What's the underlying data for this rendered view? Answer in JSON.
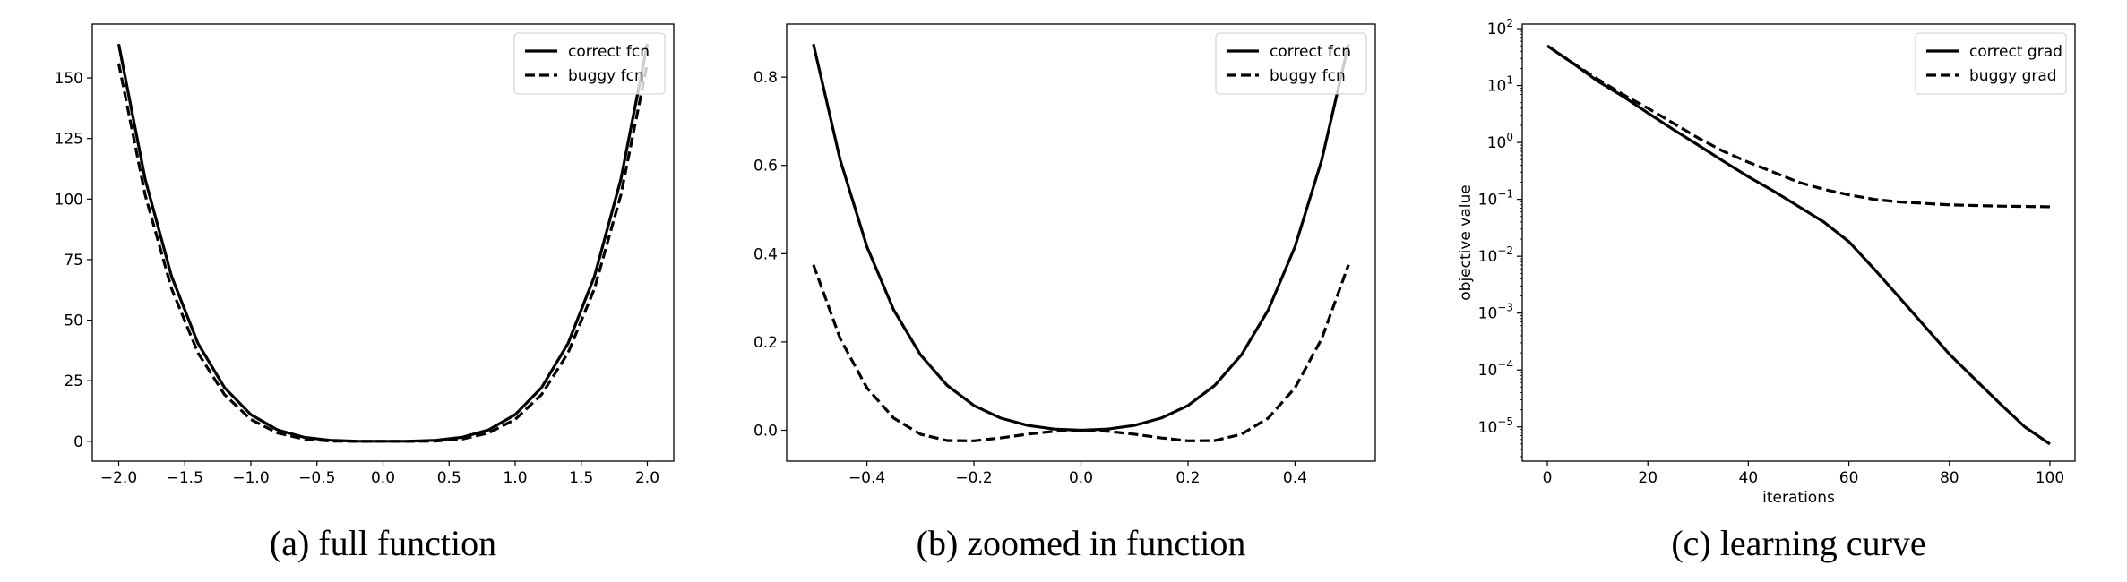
{
  "chart_data": [
    {
      "type": "line",
      "caption": "(a) full function",
      "x": [
        -2,
        -1.8,
        -1.6,
        -1.4,
        -1.2,
        -1,
        -0.8,
        -0.6,
        -0.4,
        -0.2,
        0,
        0.2,
        0.4,
        0.6,
        0.8,
        1,
        1.2,
        1.4,
        1.6,
        1.8,
        2
      ],
      "series": [
        {
          "name": "correct fcn",
          "color": "#000000",
          "linestyle": "solid",
          "values": [
            164,
            108.216,
            68.096,
            40.376,
            22.176,
            11,
            4.736,
            1.656,
            0.416,
            0.056,
            0,
            0.056,
            0.416,
            1.656,
            4.736,
            11,
            22.176,
            40.376,
            68.096,
            108.216,
            164
          ]
        },
        {
          "name": "buggy fcn",
          "color": "#000000",
          "linestyle": "dashed",
          "values": [
            156,
            101.736,
            62.976,
            36.456,
            19.296,
            9,
            3.456,
            0.936,
            0.096,
            -0.024,
            0,
            -0.024,
            0.096,
            0.936,
            3.456,
            9,
            19.296,
            36.456,
            62.976,
            101.736,
            156
          ]
        }
      ],
      "xlim": [
        -2.2,
        2.2
      ],
      "xticks": [
        {
          "value": -2,
          "label": "−2.0"
        },
        {
          "value": -1.5,
          "label": "−1.5"
        },
        {
          "value": -1,
          "label": "−1.0"
        },
        {
          "value": -0.5,
          "label": "−0.5"
        },
        {
          "value": 0,
          "label": "0.0"
        },
        0.5,
        {
          "value": 1,
          "label": "1.0"
        },
        1.5,
        {
          "value": 2,
          "label": "2.0"
        }
      ],
      "ylim": [
        -8.2,
        172.2
      ],
      "yticks": [
        0,
        25,
        50,
        75,
        100,
        125,
        150
      ],
      "yscale": "linear",
      "legend": "upper right"
    },
    {
      "type": "line",
      "caption": "(b) zoomed in function",
      "x": [
        -0.5,
        -0.45,
        -0.4,
        -0.35,
        -0.3,
        -0.25,
        -0.2,
        -0.15,
        -0.1,
        -0.05,
        0,
        0.05,
        0.1,
        0.15,
        0.2,
        0.25,
        0.3,
        0.35,
        0.4,
        0.45,
        0.5
      ],
      "series": [
        {
          "name": "correct fcn",
          "color": "#000000",
          "linestyle": "solid",
          "values": [
            0.875,
            0.6126,
            0.416,
            0.2726,
            0.171,
            0.1016,
            0.056,
            0.0276,
            0.011,
            0.0026,
            0,
            0.0026,
            0.011,
            0.0276,
            0.056,
            0.1016,
            0.171,
            0.2726,
            0.416,
            0.6126,
            0.875
          ]
        },
        {
          "name": "buggy fcn",
          "color": "#000000",
          "linestyle": "dashed",
          "values": [
            0.375,
            0.2076,
            0.096,
            0.0276,
            -0.009,
            -0.0234,
            -0.024,
            -0.0174,
            -0.009,
            -0.0024,
            0,
            -0.0024,
            -0.009,
            -0.0174,
            -0.024,
            -0.0234,
            -0.009,
            0.0276,
            0.096,
            0.2076,
            0.375
          ]
        }
      ],
      "xlim": [
        -0.55,
        0.55
      ],
      "xticks": [
        {
          "value": -0.4,
          "label": "−0.4"
        },
        {
          "value": -0.2,
          "label": "−0.2"
        },
        {
          "value": 0,
          "label": "0.0"
        },
        0.2,
        0.4
      ],
      "ylim": [
        -0.07,
        0.92
      ],
      "yticks": [
        {
          "value": 0,
          "label": "0.0"
        },
        0.2,
        0.4,
        0.6,
        0.8
      ],
      "yscale": "linear",
      "legend": "upper right"
    },
    {
      "type": "line",
      "caption": "(c) learning curve",
      "xlabel": "iterations",
      "ylabel": "objective value",
      "x": [
        0,
        5,
        10,
        15,
        20,
        25,
        30,
        35,
        40,
        45,
        50,
        55,
        60,
        65,
        70,
        75,
        80,
        85,
        90,
        95,
        100
      ],
      "series": [
        {
          "name": "correct grad",
          "color": "#000000",
          "linestyle": "solid",
          "values": [
            50,
            25,
            12,
            6.5,
            3.3,
            1.7,
            0.9,
            0.47,
            0.25,
            0.14,
            0.075,
            0.04,
            0.018,
            0.006,
            0.0019,
            0.0006,
            0.00019,
            7e-05,
            2.6e-05,
            1e-05,
            5e-06
          ]
        },
        {
          "name": "buggy grad",
          "color": "#000000",
          "linestyle": "dashed",
          "values": [
            50,
            25,
            13,
            7,
            4,
            2.2,
            1.2,
            0.7,
            0.45,
            0.3,
            0.2,
            0.15,
            0.12,
            0.1,
            0.09,
            0.085,
            0.08,
            0.078,
            0.076,
            0.075,
            0.074
          ]
        }
      ],
      "xlim": [
        -5,
        105
      ],
      "xticks": [
        0,
        20,
        40,
        60,
        80,
        100
      ],
      "ylim": [
        2.5e-06,
        120
      ],
      "yticks": [
        {
          "value": 1e-05,
          "label": "10^−5"
        },
        {
          "value": 0.0001,
          "label": "10^−4"
        },
        {
          "value": 0.001,
          "label": "10^−3"
        },
        {
          "value": 0.01,
          "label": "10^−2"
        },
        {
          "value": 0.1,
          "label": "10^−1"
        },
        {
          "value": 1,
          "label": "10^0"
        },
        {
          "value": 10,
          "label": "10^1"
        },
        {
          "value": 100,
          "label": "10^2"
        }
      ],
      "yscale": "log",
      "legend": "upper right"
    }
  ]
}
